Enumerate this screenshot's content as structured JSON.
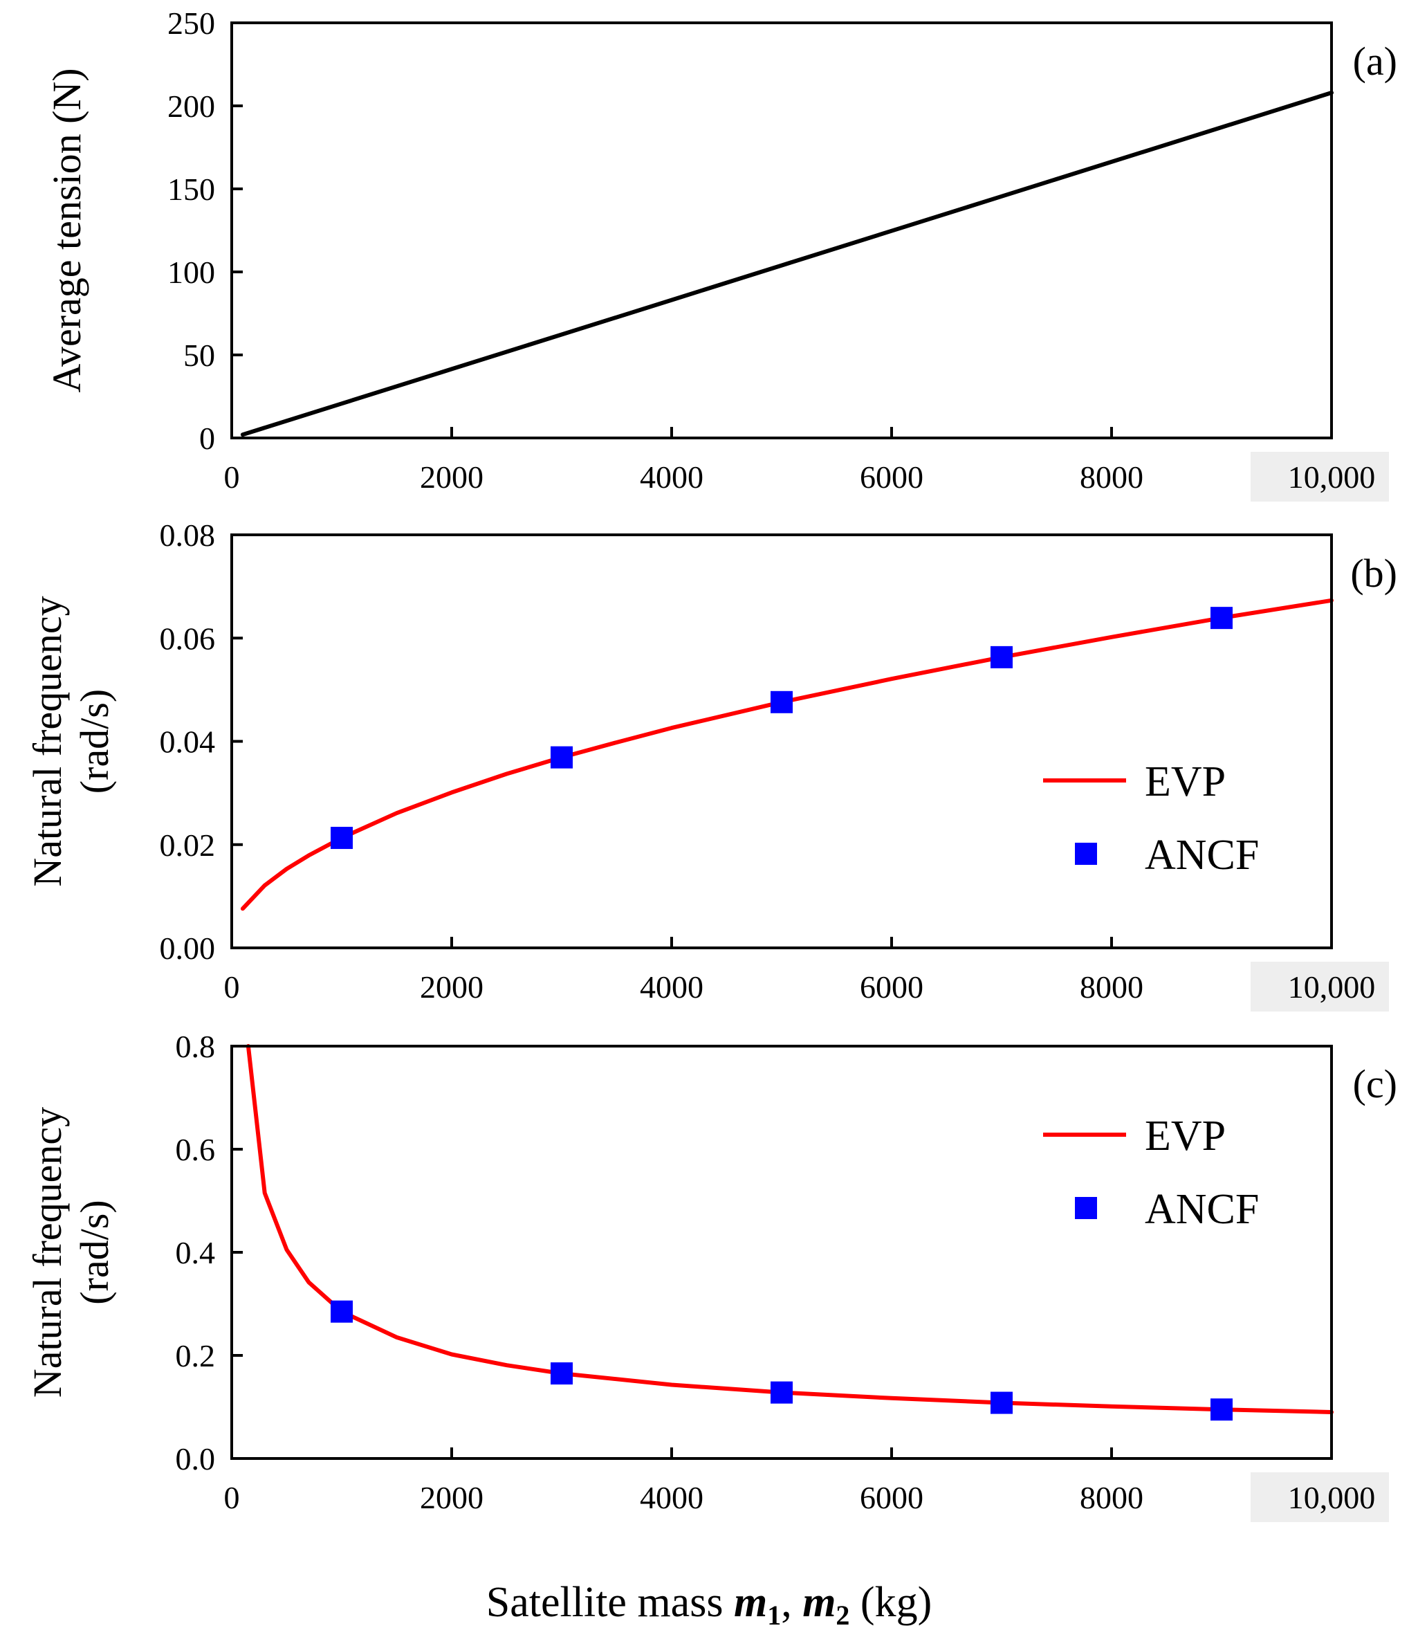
{
  "figure": {
    "x_axis_title_prefix": "Satellite mass ",
    "x_axis_title_sym1": "m",
    "x_axis_title_sub1": "1",
    "x_axis_title_sep": ", ",
    "x_axis_title_sym2": "m",
    "x_axis_title_sub2": "2",
    "x_axis_title_unit": " (kg)"
  },
  "chart_data": [
    {
      "panel": "(a)",
      "type": "line",
      "ylabel": "Average tension (N)",
      "ylabel_lines": [
        "Average tension (N)"
      ],
      "xlim": [
        0,
        10000
      ],
      "ylim": [
        0,
        250
      ],
      "xticks": [
        0,
        2000,
        4000,
        6000,
        8000,
        10000
      ],
      "xtick_labels": [
        "0",
        "2000",
        "4000",
        "6000",
        "8000",
        "10,000"
      ],
      "yticks": [
        0,
        50,
        100,
        150,
        200,
        250
      ],
      "ytick_labels": [
        "0",
        "50",
        "100",
        "150",
        "200",
        "250"
      ],
      "legend": null,
      "series": [
        {
          "name": "Average tension",
          "style": "line",
          "color": "#000000",
          "x": [
            100,
            1000,
            2000,
            3000,
            4000,
            5000,
            6000,
            7000,
            8000,
            9000,
            10000
          ],
          "y": [
            2,
            20.7,
            41.5,
            62.3,
            83.1,
            103.9,
            124.7,
            145.5,
            166.3,
            187.1,
            207.9
          ]
        }
      ]
    },
    {
      "panel": "(b)",
      "type": "line",
      "ylabel": "Natural frequency (rad/s)",
      "ylabel_lines": [
        "Natural frequency",
        "(rad/s)"
      ],
      "xlim": [
        0,
        10000
      ],
      "ylim": [
        0,
        0.08
      ],
      "xticks": [
        0,
        2000,
        4000,
        6000,
        8000,
        10000
      ],
      "xtick_labels": [
        "0",
        "2000",
        "4000",
        "6000",
        "8000",
        "10,000"
      ],
      "yticks": [
        0,
        0.02,
        0.04,
        0.06,
        0.08
      ],
      "ytick_labels": [
        "0.00",
        "0.02",
        "0.04",
        "0.06",
        "0.08"
      ],
      "legend": [
        "EVP",
        "ANCF"
      ],
      "series": [
        {
          "name": "EVP",
          "style": "line",
          "color": "#ff0000",
          "x": [
            100,
            300,
            500,
            700,
            1000,
            1500,
            2000,
            2500,
            3000,
            3500,
            4000,
            5000,
            6000,
            7000,
            8000,
            9000,
            10000
          ],
          "y": [
            0.0076,
            0.0121,
            0.0153,
            0.0179,
            0.0213,
            0.0261,
            0.0301,
            0.0337,
            0.0369,
            0.0398,
            0.0426,
            0.0476,
            0.0521,
            0.0563,
            0.0602,
            0.0639,
            0.0673
          ]
        },
        {
          "name": "ANCF",
          "style": "marker",
          "color": "#0000ff",
          "x": [
            1000,
            3000,
            5000,
            7000,
            9000
          ],
          "y": [
            0.0213,
            0.0369,
            0.0476,
            0.0563,
            0.0639
          ]
        }
      ]
    },
    {
      "panel": "(c)",
      "type": "line",
      "ylabel": "Natural frequency (rad/s)",
      "ylabel_lines": [
        "Natural frequency",
        "(rad/s)"
      ],
      "xlim": [
        0,
        10000
      ],
      "ylim": [
        0,
        0.8
      ],
      "xticks": [
        0,
        2000,
        4000,
        6000,
        8000,
        10000
      ],
      "xtick_labels": [
        "0",
        "2000",
        "4000",
        "6000",
        "8000",
        "10,000"
      ],
      "yticks": [
        0,
        0.2,
        0.4,
        0.6,
        0.8
      ],
      "ytick_labels": [
        "0.0",
        "0.2",
        "0.4",
        "0.6",
        "0.8"
      ],
      "legend": [
        "EVP",
        "ANCF"
      ],
      "series": [
        {
          "name": "EVP",
          "style": "line",
          "color": "#ff0000",
          "x": [
            150,
            300,
            500,
            700,
            1000,
            1500,
            2000,
            2500,
            3000,
            4000,
            5000,
            6000,
            7000,
            8000,
            9000,
            10000
          ],
          "y": [
            0.8,
            0.515,
            0.405,
            0.342,
            0.285,
            0.235,
            0.202,
            0.181,
            0.165,
            0.143,
            0.128,
            0.117,
            0.108,
            0.101,
            0.095,
            0.09
          ]
        },
        {
          "name": "ANCF",
          "style": "marker",
          "color": "#0000ff",
          "x": [
            1000,
            3000,
            5000,
            7000,
            9000
          ],
          "y": [
            0.285,
            0.165,
            0.128,
            0.108,
            0.095
          ]
        }
      ]
    }
  ]
}
